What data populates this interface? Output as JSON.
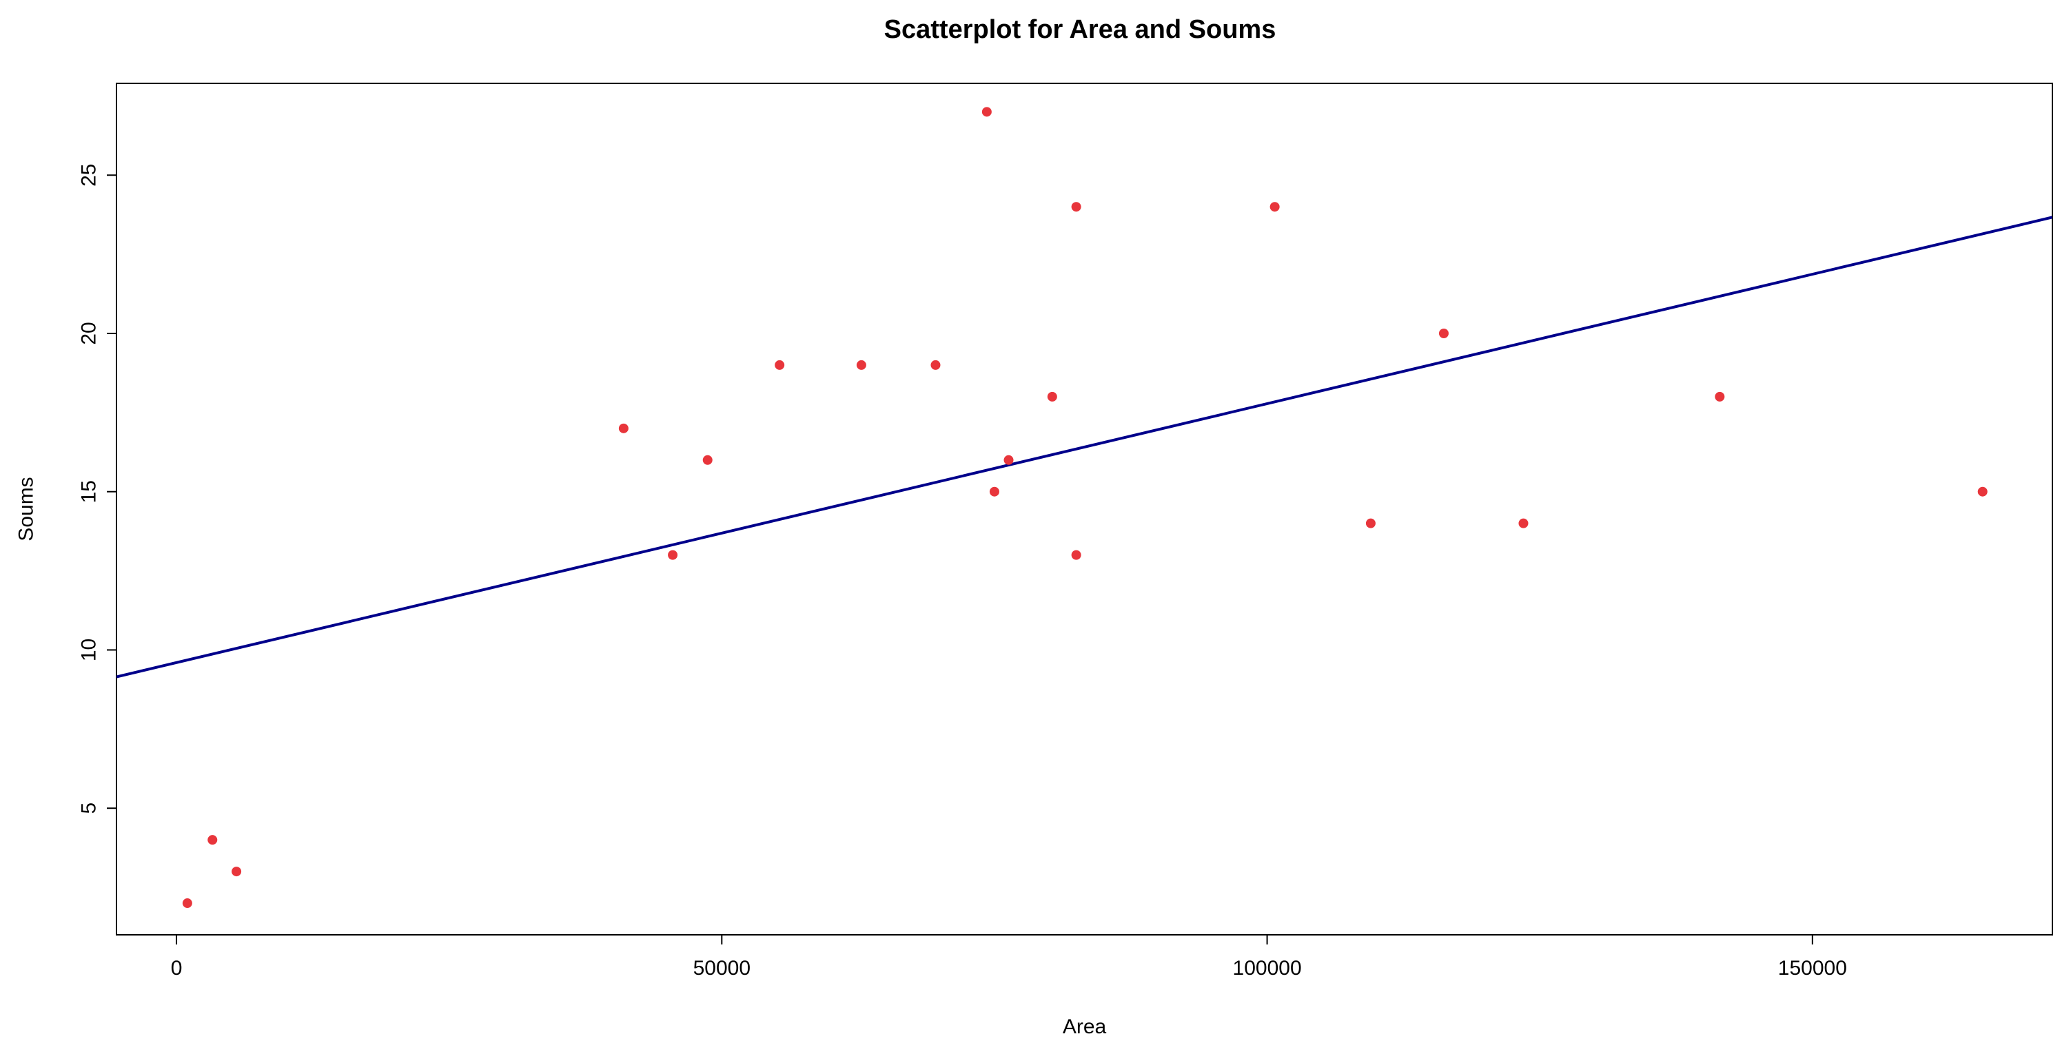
{
  "chart_data": {
    "type": "scatter",
    "title": "Scatterplot for Area and Soums",
    "xlabel": "Area",
    "ylabel": "Soums",
    "xlim": [
      -5500,
      172000
    ],
    "ylim": [
      1.0,
      27.9
    ],
    "x_ticks": [
      0,
      50000,
      100000,
      150000
    ],
    "x_tick_labels": [
      "0",
      "50000",
      "100000",
      "150000"
    ],
    "y_ticks": [
      5,
      10,
      15,
      20,
      25
    ],
    "y_tick_labels": [
      "5",
      "10",
      "15",
      "20",
      "25"
    ],
    "grid": false,
    "legend": "none",
    "point_color": "#e8353b",
    "line_color": "#00008b",
    "series": [
      {
        "x": [
          1000,
          3300,
          5500,
          41000,
          45500,
          48700,
          55300,
          62800,
          69600,
          74300,
          75000,
          76300,
          80300,
          82500,
          82500,
          100700,
          109500,
          116200,
          123500,
          141500,
          165600
        ],
        "y": [
          2,
          4,
          3,
          17,
          13,
          16,
          19,
          19,
          19,
          27,
          15,
          16,
          18,
          24,
          13,
          24,
          14,
          20,
          14,
          18,
          15
        ]
      }
    ],
    "fit_line": {
      "intercept": 9.6,
      "slope": 8.18e-05
    }
  }
}
